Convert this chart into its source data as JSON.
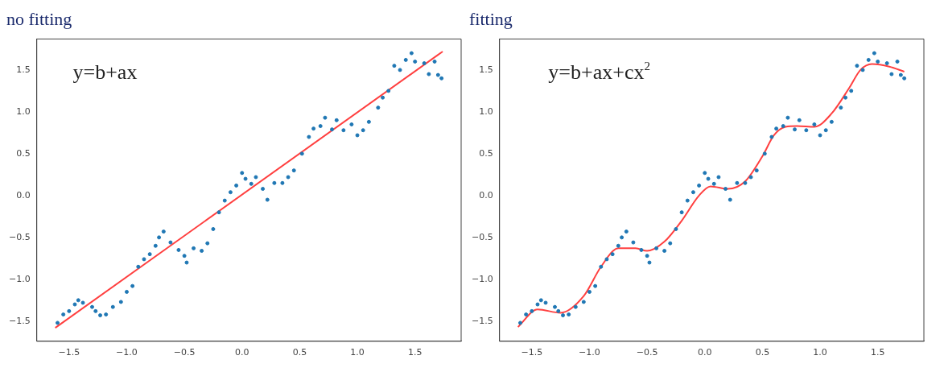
{
  "chart_data": [
    {
      "type": "scatter",
      "title": "no fitting",
      "annotations": [
        "y=b+ax"
      ],
      "xlim": [
        -1.78,
        1.9
      ],
      "ylim": [
        -1.74,
        1.87
      ],
      "xticks": [
        {
          "value": -1.5,
          "label": "−1.5"
        },
        {
          "value": -1,
          "label": "−1.0"
        },
        {
          "value": -0.5,
          "label": "−0.5"
        },
        {
          "value": 0,
          "label": "0.0"
        },
        {
          "value": 0.5,
          "label": "0.5"
        },
        {
          "value": 1,
          "label": "1.0"
        },
        {
          "value": 1.5,
          "label": "1.5"
        }
      ],
      "yticks": [
        {
          "value": -1.5,
          "label": "−1.5"
        },
        {
          "value": -1,
          "label": "−1.0"
        },
        {
          "value": -0.5,
          "label": "−0.5"
        },
        {
          "value": 0,
          "label": "0.0"
        },
        {
          "value": 0.5,
          "label": "0.5"
        },
        {
          "value": 1,
          "label": "1.0"
        },
        {
          "value": 1.5,
          "label": "1.5"
        }
      ],
      "grid": false,
      "legend": false,
      "series": [
        {
          "type": "scatter",
          "color": "#1f77b4",
          "marker": "circle",
          "x": [
            -1.6,
            -1.55,
            -1.5,
            -1.45,
            -1.42,
            -1.38,
            -1.3,
            -1.27,
            -1.23,
            -1.18,
            -1.12,
            -1.05,
            -1.0,
            -0.95,
            -0.9,
            -0.85,
            -0.8,
            -0.75,
            -0.72,
            -0.68,
            -0.62,
            -0.55,
            -0.5,
            -0.48,
            -0.42,
            -0.35,
            -0.3,
            -0.25,
            -0.2,
            -0.15,
            -0.1,
            -0.05,
            0.0,
            0.03,
            0.08,
            0.12,
            0.18,
            0.22,
            0.28,
            0.35,
            0.4,
            0.45,
            0.52,
            0.58,
            0.62,
            0.68,
            0.72,
            0.78,
            0.82,
            0.88,
            0.95,
            1.0,
            1.05,
            1.1,
            1.18,
            1.22,
            1.27,
            1.32,
            1.37,
            1.42,
            1.47,
            1.5,
            1.58,
            1.62,
            1.67,
            1.7,
            1.73
          ],
          "values": [
            -1.52,
            -1.42,
            -1.38,
            -1.3,
            -1.25,
            -1.28,
            -1.33,
            -1.38,
            -1.43,
            -1.42,
            -1.33,
            -1.27,
            -1.15,
            -1.08,
            -0.85,
            -0.76,
            -0.7,
            -0.6,
            -0.5,
            -0.43,
            -0.56,
            -0.65,
            -0.72,
            -0.8,
            -0.63,
            -0.66,
            -0.57,
            -0.4,
            -0.2,
            -0.06,
            0.04,
            0.12,
            0.27,
            0.2,
            0.14,
            0.22,
            0.08,
            -0.05,
            0.15,
            0.15,
            0.22,
            0.3,
            0.5,
            0.7,
            0.8,
            0.83,
            0.93,
            0.79,
            0.9,
            0.78,
            0.85,
            0.72,
            0.78,
            0.88,
            1.05,
            1.17,
            1.25,
            1.55,
            1.5,
            1.62,
            1.7,
            1.6,
            1.58,
            1.45,
            1.6,
            1.44,
            1.4
          ]
        },
        {
          "type": "line",
          "color": "#ff4040",
          "x": [
            -1.62,
            1.74
          ],
          "values": [
            -1.58,
            1.72
          ]
        }
      ]
    },
    {
      "type": "scatter",
      "title": "fitting",
      "annotations": [
        "y=b+ax+cx$^{2}$"
      ],
      "xlim": [
        -1.78,
        1.9
      ],
      "ylim": [
        -1.74,
        1.87
      ],
      "xticks": [
        {
          "value": -1.5,
          "label": "−1.5"
        },
        {
          "value": -1,
          "label": "−1.0"
        },
        {
          "value": -0.5,
          "label": "−0.5"
        },
        {
          "value": 0,
          "label": "0.0"
        },
        {
          "value": 0.5,
          "label": "0.5"
        },
        {
          "value": 1,
          "label": "1.0"
        },
        {
          "value": 1.5,
          "label": "1.5"
        }
      ],
      "yticks": [
        {
          "value": -1.5,
          "label": "−1.5"
        },
        {
          "value": -1,
          "label": "−1.0"
        },
        {
          "value": -0.5,
          "label": "−0.5"
        },
        {
          "value": 0,
          "label": "0.0"
        },
        {
          "value": 0.5,
          "label": "0.5"
        },
        {
          "value": 1,
          "label": "1.0"
        },
        {
          "value": 1.5,
          "label": "1.5"
        }
      ],
      "grid": false,
      "legend": false,
      "series": [
        {
          "type": "scatter",
          "color": "#1f77b4",
          "marker": "circle",
          "x": [
            -1.6,
            -1.55,
            -1.5,
            -1.45,
            -1.42,
            -1.38,
            -1.3,
            -1.27,
            -1.23,
            -1.18,
            -1.12,
            -1.05,
            -1.0,
            -0.95,
            -0.9,
            -0.85,
            -0.8,
            -0.75,
            -0.72,
            -0.68,
            -0.62,
            -0.55,
            -0.5,
            -0.48,
            -0.42,
            -0.35,
            -0.3,
            -0.25,
            -0.2,
            -0.15,
            -0.1,
            -0.05,
            0.0,
            0.03,
            0.08,
            0.12,
            0.18,
            0.22,
            0.28,
            0.35,
            0.4,
            0.45,
            0.52,
            0.58,
            0.62,
            0.68,
            0.72,
            0.78,
            0.82,
            0.88,
            0.95,
            1.0,
            1.05,
            1.1,
            1.18,
            1.22,
            1.27,
            1.32,
            1.37,
            1.42,
            1.47,
            1.5,
            1.58,
            1.62,
            1.67,
            1.7,
            1.73
          ],
          "values": [
            -1.52,
            -1.42,
            -1.38,
            -1.3,
            -1.25,
            -1.28,
            -1.33,
            -1.38,
            -1.43,
            -1.42,
            -1.33,
            -1.27,
            -1.15,
            -1.08,
            -0.85,
            -0.76,
            -0.7,
            -0.6,
            -0.5,
            -0.43,
            -0.56,
            -0.65,
            -0.72,
            -0.8,
            -0.63,
            -0.66,
            -0.57,
            -0.4,
            -0.2,
            -0.06,
            0.04,
            0.12,
            0.27,
            0.2,
            0.14,
            0.22,
            0.08,
            -0.05,
            0.15,
            0.15,
            0.22,
            0.3,
            0.5,
            0.7,
            0.8,
            0.83,
            0.93,
            0.79,
            0.9,
            0.78,
            0.85,
            0.72,
            0.78,
            0.88,
            1.05,
            1.17,
            1.25,
            1.55,
            1.5,
            1.62,
            1.7,
            1.6,
            1.58,
            1.45,
            1.6,
            1.44,
            1.4
          ]
        },
        {
          "type": "line",
          "color": "#ff4040",
          "x": [
            -1.62,
            -1.45,
            -1.25,
            -1.05,
            -0.9,
            -0.75,
            -0.6,
            -0.5,
            -0.35,
            -0.2,
            -0.05,
            0.05,
            0.2,
            0.35,
            0.5,
            0.6,
            0.7,
            0.8,
            0.95,
            1.1,
            1.25,
            1.35,
            1.45,
            1.6,
            1.73
          ],
          "values": [
            -1.57,
            -1.36,
            -1.4,
            -1.2,
            -0.85,
            -0.63,
            -0.63,
            -0.66,
            -0.55,
            -0.3,
            0.0,
            0.11,
            0.08,
            0.17,
            0.47,
            0.72,
            0.82,
            0.83,
            0.82,
            0.98,
            1.28,
            1.5,
            1.57,
            1.54,
            1.48
          ]
        }
      ]
    }
  ]
}
